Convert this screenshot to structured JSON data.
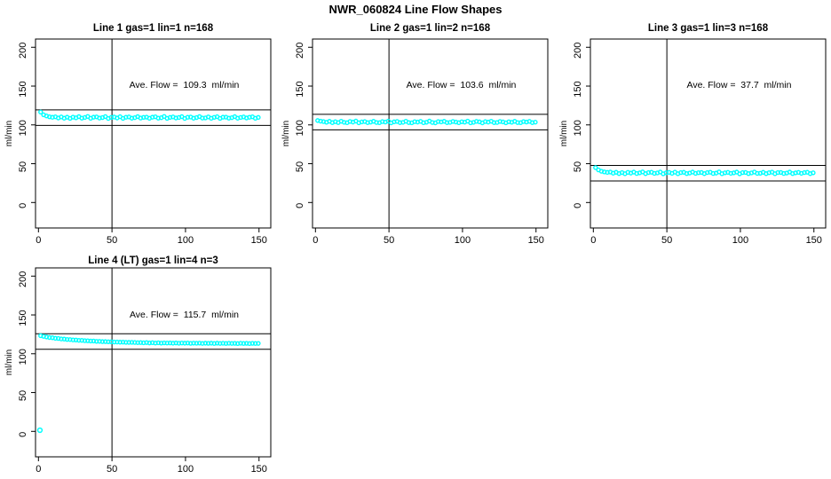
{
  "figure": {
    "title": "NWR_060824  Line Flow Shapes",
    "background_color": "#ffffff",
    "point_color": "#00ffff",
    "line_color": "#000000"
  },
  "chart_data": [
    {
      "type": "scatter",
      "title": "Line 1 gas=1 lin=1 n=168",
      "annotation": "Ave. Flow =  109.3  ml/min",
      "ave_flow_ml_min": 109.3,
      "n": 168,
      "ylabel": "ml/min",
      "x_ticks": [
        0,
        50,
        100,
        150
      ],
      "y_ticks": [
        0,
        50,
        100,
        150,
        200
      ],
      "xlim": [
        -2,
        158
      ],
      "ylim": [
        -32.8,
        210.6
      ],
      "vline_x": 50,
      "hlines": [
        119.3,
        99.3
      ],
      "grid": false,
      "series": {
        "x0": 1.5,
        "dx": 2,
        "y": [
          116.5,
          113.0,
          111.5,
          110.4,
          109.8,
          110.4,
          108.9,
          110.2,
          108.6,
          109.9,
          108.4,
          110.0,
          109.1,
          110.6,
          108.7,
          109.5,
          110.8,
          108.5,
          109.9,
          110.3,
          108.8,
          109.4,
          110.7,
          108.3,
          109.6,
          110.1,
          108.9,
          110.5,
          108.4,
          109.8,
          110.2,
          108.6,
          109.3,
          110.6,
          108.8,
          109.7,
          110.0,
          108.5,
          109.9,
          110.4,
          108.7,
          109.2,
          110.8,
          108.4,
          109.6,
          110.2,
          108.9,
          109.5,
          110.6,
          108.3,
          109.8,
          110.1,
          108.6,
          109.4,
          110.7,
          108.8,
          109.0,
          110.3,
          108.5,
          109.7,
          110.5,
          108.4,
          109.9,
          110.0,
          108.7,
          109.3,
          110.6,
          108.6,
          109.5,
          110.2,
          108.9,
          109.8,
          110.4,
          108.5,
          109.6
        ]
      },
      "extra_points": []
    },
    {
      "type": "scatter",
      "title": "Line 2 gas=1 lin=2 n=168",
      "annotation": "Ave. Flow =  103.6  ml/min",
      "ave_flow_ml_min": 103.6,
      "n": 168,
      "ylabel": "ml/min",
      "x_ticks": [
        0,
        50,
        100,
        150
      ],
      "y_ticks": [
        0,
        50,
        100,
        150,
        200
      ],
      "xlim": [
        -2,
        158
      ],
      "ylim": [
        -32.8,
        210.6
      ],
      "vline_x": 50,
      "hlines": [
        113.6,
        93.6
      ],
      "grid": false,
      "series": {
        "x0": 1.5,
        "dx": 2,
        "y": [
          105.6,
          104.8,
          104.2,
          103.4,
          104.6,
          102.9,
          104.1,
          103.0,
          104.7,
          103.3,
          102.8,
          104.4,
          103.6,
          104.9,
          102.7,
          103.8,
          104.3,
          102.9,
          103.5,
          104.6,
          103.1,
          102.8,
          104.2,
          103.7,
          104.8,
          102.6,
          103.9,
          104.4,
          102.9,
          103.3,
          104.7,
          103.0,
          102.7,
          104.1,
          103.6,
          104.5,
          102.8,
          103.4,
          104.9,
          103.1,
          102.6,
          104.3,
          103.8,
          104.6,
          102.9,
          103.2,
          104.4,
          103.7,
          102.8,
          104.0,
          103.5,
          104.8,
          102.7,
          103.3,
          104.5,
          103.9,
          102.6,
          104.2,
          103.6,
          104.7,
          102.9,
          103.1,
          104.4,
          103.8,
          102.7,
          104.0,
          103.4,
          104.6,
          103.0,
          102.8,
          104.3,
          103.7,
          104.5,
          102.9,
          103.5
        ]
      },
      "extra_points": []
    },
    {
      "type": "scatter",
      "title": "Line 3 gas=1 lin=3 n=168",
      "annotation": "Ave. Flow =  37.7  ml/min",
      "ave_flow_ml_min": 37.7,
      "n": 168,
      "ylabel": "ml/min",
      "x_ticks": [
        0,
        50,
        100,
        150
      ],
      "y_ticks": [
        0,
        50,
        100,
        150,
        200
      ],
      "xlim": [
        -2,
        158
      ],
      "ylim": [
        -32.8,
        210.6
      ],
      "vline_x": 50,
      "hlines": [
        47.7,
        27.7
      ],
      "grid": false,
      "series": {
        "x0": 1.5,
        "dx": 2,
        "y": [
          45.0,
          42.0,
          40.3,
          39.4,
          38.8,
          39.3,
          37.8,
          38.9,
          37.3,
          38.6,
          37.1,
          38.8,
          37.9,
          39.2,
          37.4,
          38.2,
          39.4,
          37.2,
          38.6,
          39.0,
          37.5,
          38.1,
          39.3,
          37.0,
          38.3,
          38.8,
          37.6,
          39.1,
          37.1,
          38.5,
          38.9,
          37.3,
          38.0,
          39.2,
          37.5,
          38.4,
          38.7,
          37.2,
          38.6,
          39.0,
          37.4,
          37.9,
          39.4,
          37.1,
          38.3,
          38.8,
          37.6,
          38.2,
          39.2,
          37.0,
          38.5,
          38.7,
          37.3,
          38.1,
          39.3,
          37.5,
          37.7,
          38.9,
          37.2,
          38.4,
          39.1,
          37.1,
          38.6,
          38.7,
          37.4,
          38.0,
          39.2,
          37.3,
          38.2,
          38.8,
          37.6,
          38.5,
          39.0,
          37.2,
          38.3
        ]
      },
      "extra_points": []
    },
    {
      "type": "scatter",
      "title": "Line 4 (LT) gas=1 lin=4 n=3",
      "annotation": "Ave. Flow =  115.7  ml/min",
      "ave_flow_ml_min": 115.7,
      "n": 3,
      "ylabel": "ml/min",
      "x_ticks": [
        0,
        50,
        100,
        150
      ],
      "y_ticks": [
        0,
        50,
        100,
        150,
        200
      ],
      "xlim": [
        -2,
        158
      ],
      "ylim": [
        -32.8,
        210.6
      ],
      "vline_x": 50,
      "hlines": [
        125.7,
        105.7
      ],
      "grid": false,
      "series": {
        "x0": 1.5,
        "dx": 2,
        "y": [
          123.2,
          122.4,
          121.6,
          120.9,
          120.6,
          119.9,
          119.7,
          119.1,
          118.9,
          118.4,
          118.3,
          117.8,
          117.7,
          117.3,
          117.2,
          116.8,
          116.7,
          116.4,
          116.4,
          116.0,
          116.0,
          115.6,
          115.6,
          115.4,
          115.4,
          115.1,
          115.1,
          114.9,
          115.0,
          114.7,
          114.6,
          114.7,
          114.5,
          114.3,
          114.4,
          114.1,
          114.4,
          113.9,
          114.2,
          113.8,
          114.1,
          113.7,
          114.0,
          113.8,
          113.9,
          113.6,
          113.9,
          113.5,
          113.8,
          113.6,
          113.8,
          113.4,
          113.7,
          113.5,
          113.7,
          113.3,
          113.6,
          113.4,
          113.6,
          113.2,
          113.6,
          113.3,
          113.5,
          113.2,
          113.5,
          113.3,
          113.4,
          113.1,
          113.5,
          113.2,
          113.4,
          113.1,
          113.4,
          113.2,
          113.3
        ]
      },
      "extra_points": [
        [
          1,
          1.5
        ]
      ]
    }
  ]
}
